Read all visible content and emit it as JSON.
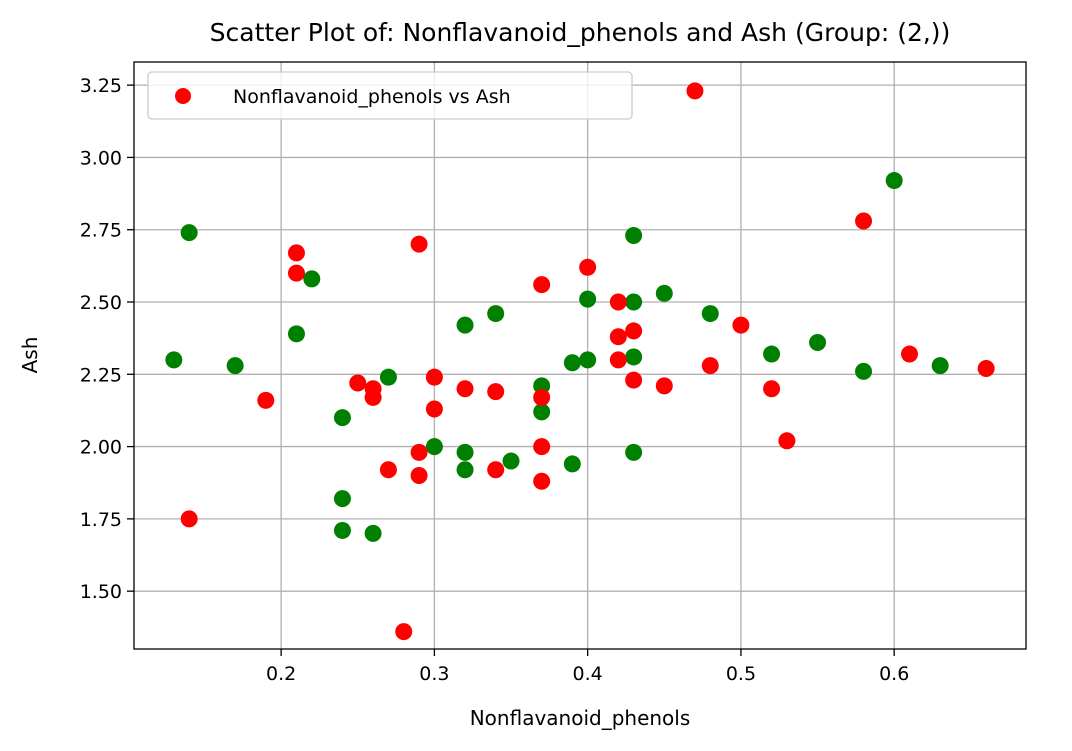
{
  "chart_data": {
    "type": "scatter",
    "title": "Scatter Plot of: Nonflavanoid_phenols and Ash (Group: (2,))",
    "xlabel": "Nonflavanoid_phenols",
    "ylabel": "Ash",
    "xlim": [
      0.104,
      0.686
    ],
    "ylim": [
      1.3,
      3.33
    ],
    "xticks": [
      0.2,
      0.3,
      0.4,
      0.5,
      0.6
    ],
    "xtick_labels": [
      "0.2",
      "0.3",
      "0.4",
      "0.5",
      "0.6"
    ],
    "yticks": [
      1.5,
      1.75,
      2.0,
      2.25,
      2.5,
      2.75,
      3.0,
      3.25
    ],
    "ytick_labels": [
      "1.50",
      "1.75",
      "2.00",
      "2.25",
      "2.50",
      "2.75",
      "3.00",
      "3.25"
    ],
    "grid": true,
    "legend_position": "top-left",
    "series": [
      {
        "name": "Nonflavanoid_phenols vs Ash",
        "color": "#ff0000",
        "points": [
          [
            0.47,
            3.23
          ],
          [
            0.58,
            2.78
          ],
          [
            0.29,
            2.7
          ],
          [
            0.21,
            2.67
          ],
          [
            0.21,
            2.6
          ],
          [
            0.4,
            2.62
          ],
          [
            0.37,
            2.56
          ],
          [
            0.42,
            2.5
          ],
          [
            0.42,
            2.38
          ],
          [
            0.43,
            2.4
          ],
          [
            0.5,
            2.42
          ],
          [
            0.42,
            2.3
          ],
          [
            0.61,
            2.32
          ],
          [
            0.66,
            2.27
          ],
          [
            0.48,
            2.28
          ],
          [
            0.43,
            2.23
          ],
          [
            0.45,
            2.21
          ],
          [
            0.52,
            2.2
          ],
          [
            0.3,
            2.24
          ],
          [
            0.25,
            2.22
          ],
          [
            0.26,
            2.2
          ],
          [
            0.26,
            2.17
          ],
          [
            0.32,
            2.2
          ],
          [
            0.34,
            2.19
          ],
          [
            0.37,
            2.17
          ],
          [
            0.19,
            2.16
          ],
          [
            0.3,
            2.13
          ],
          [
            0.53,
            2.02
          ],
          [
            0.37,
            2.0
          ],
          [
            0.29,
            1.98
          ],
          [
            0.27,
            1.92
          ],
          [
            0.29,
            1.9
          ],
          [
            0.34,
            1.92
          ],
          [
            0.37,
            1.88
          ],
          [
            0.14,
            1.75
          ],
          [
            0.28,
            1.36
          ]
        ]
      },
      {
        "name": "",
        "color": "#008000",
        "points": [
          [
            0.6,
            2.92
          ],
          [
            0.14,
            2.74
          ],
          [
            0.43,
            2.73
          ],
          [
            0.22,
            2.58
          ],
          [
            0.4,
            2.51
          ],
          [
            0.43,
            2.5
          ],
          [
            0.45,
            2.53
          ],
          [
            0.34,
            2.46
          ],
          [
            0.32,
            2.42
          ],
          [
            0.48,
            2.46
          ],
          [
            0.21,
            2.39
          ],
          [
            0.55,
            2.36
          ],
          [
            0.52,
            2.32
          ],
          [
            0.43,
            2.31
          ],
          [
            0.39,
            2.29
          ],
          [
            0.4,
            2.3
          ],
          [
            0.13,
            2.3
          ],
          [
            0.17,
            2.28
          ],
          [
            0.58,
            2.26
          ],
          [
            0.63,
            2.28
          ],
          [
            0.27,
            2.24
          ],
          [
            0.37,
            2.21
          ],
          [
            0.37,
            2.12
          ],
          [
            0.24,
            2.1
          ],
          [
            0.3,
            2.0
          ],
          [
            0.32,
            1.98
          ],
          [
            0.43,
            1.98
          ],
          [
            0.32,
            1.92
          ],
          [
            0.35,
            1.95
          ],
          [
            0.39,
            1.94
          ],
          [
            0.24,
            1.82
          ],
          [
            0.24,
            1.71
          ],
          [
            0.26,
            1.7
          ]
        ]
      }
    ]
  }
}
